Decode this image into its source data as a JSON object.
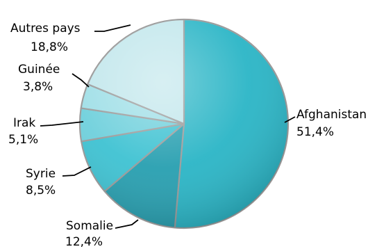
{
  "chart_data": {
    "type": "pie",
    "title": "",
    "start_angle_deg": 0,
    "direction": "clockwise",
    "slices": [
      {
        "label": "Afghanistan",
        "value": 51.4,
        "value_label": "51,4%",
        "color": "#2ab5c6"
      },
      {
        "label": "Somalie",
        "value": 12.4,
        "value_label": "12,4%",
        "color": "#279fb0"
      },
      {
        "label": "Syrie",
        "value": 8.5,
        "value_label": "8,5%",
        "color": "#3ec2d2"
      },
      {
        "label": "Irak",
        "value": 5.1,
        "value_label": "5,1%",
        "color": "#6fd0dc"
      },
      {
        "label": "Guinée",
        "value": 3.8,
        "value_label": "3,8%",
        "color": "#9fdfe7"
      },
      {
        "label": "Autres pays",
        "value": 18.8,
        "value_label": "18,8%",
        "color": "#c2e7ec"
      }
    ],
    "legend": "none",
    "labels": "outside-with-leader-lines",
    "grid": false
  }
}
